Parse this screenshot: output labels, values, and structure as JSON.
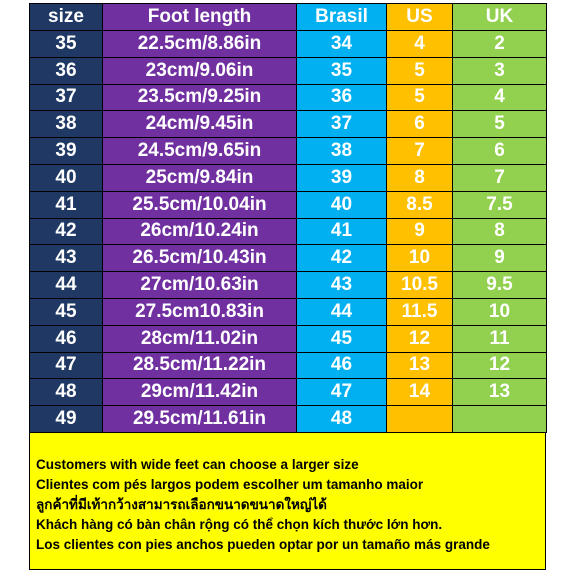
{
  "table": {
    "header": [
      "size",
      "Foot length",
      "Brasil",
      "US",
      "UK"
    ],
    "rows": [
      [
        "35",
        "22.5cm/8.86in",
        "34",
        "4",
        "2"
      ],
      [
        "36",
        "23cm/9.06in",
        "35",
        "5",
        "3"
      ],
      [
        "37",
        "23.5cm/9.25in",
        "36",
        "5",
        "4"
      ],
      [
        "38",
        "24cm/9.45in",
        "37",
        "6",
        "5"
      ],
      [
        "39",
        "24.5cm/9.65in",
        "38",
        "7",
        "6"
      ],
      [
        "40",
        "25cm/9.84in",
        "39",
        "8",
        "7"
      ],
      [
        "41",
        "25.5cm/10.04in",
        "40",
        "8.5",
        "7.5"
      ],
      [
        "42",
        "26cm/10.24in",
        "41",
        "9",
        "8"
      ],
      [
        "43",
        "26.5cm/10.43in",
        "42",
        "10",
        "9"
      ],
      [
        "44",
        "27cm/10.63in",
        "43",
        "10.5",
        "9.5"
      ],
      [
        "45",
        "27.5cm10.83in",
        "44",
        "11.5",
        "10"
      ],
      [
        "46",
        "28cm/11.02in",
        "45",
        "12",
        "11"
      ],
      [
        "47",
        "28.5cm/11.22in",
        "46",
        "13",
        "12"
      ],
      [
        "48",
        "29cm/11.42in",
        "47",
        "14",
        "13"
      ],
      [
        "49",
        "29.5cm/11.61in",
        "48"
      ]
    ]
  },
  "notes": [
    "Customers with wide feet can choose a larger size",
    "Clientes com pés largos podem escolher um tamanho maior",
    "ลูกค้าที่มีเท้ากว้างสามารถเลือกขนาดขนาดใหญ่ได้",
    "Khách hàng có bàn chân rộng có thể chọn kích thước lớn hơn.",
    "Los clientes con pies anchos pueden optar por un tamaño más grande"
  ]
}
